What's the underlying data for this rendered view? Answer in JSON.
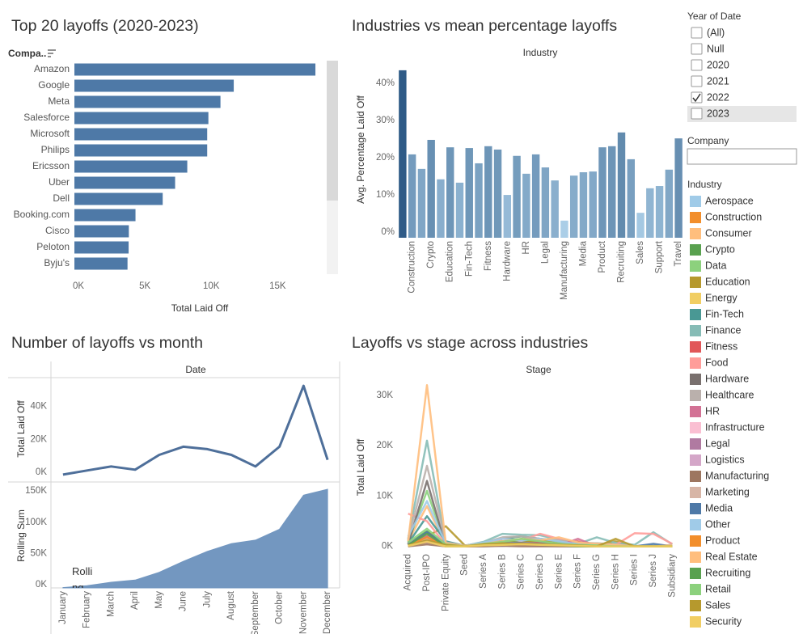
{
  "chart_data": [
    {
      "type": "bar",
      "orientation": "horizontal",
      "title": "Top 20 layoffs (2020-2023)",
      "y_label": "Compa..",
      "x_label": "Total Laid Off",
      "categories": [
        "Amazon",
        "Google",
        "Meta",
        "Salesforce",
        "Microsoft",
        "Philips",
        "Ericsson",
        "Uber",
        "Dell",
        "Booking.com",
        "Cisco",
        "Peloton",
        "Byju's"
      ],
      "values": [
        18150,
        12000,
        11000,
        10090,
        10000,
        10000,
        8500,
        7585,
        6650,
        4601,
        4100,
        4084,
        4000
      ],
      "color": "#4e79a7",
      "xlim": [
        0,
        19000
      ],
      "xticks": [
        {
          "value": 0,
          "label": "0K"
        },
        {
          "value": 5000,
          "label": "5K"
        },
        {
          "value": 10000,
          "label": "10K"
        },
        {
          "value": 15000,
          "label": "15K"
        }
      ],
      "grid": false
    },
    {
      "type": "bar",
      "title": "Industries vs mean percentage layoffs",
      "header": "Industry",
      "y_label": "Avg. Percentage Laid Off",
      "categories": [
        null,
        "Construction",
        null,
        "Crypto",
        null,
        "Education",
        null,
        "Fin-Tech",
        null,
        "Fitness",
        null,
        "Hardware",
        null,
        "HR",
        null,
        "Legal",
        null,
        "Manufacturing",
        null,
        "Media",
        null,
        "Product",
        null,
        "Recruiting",
        null,
        "Sales",
        null,
        "Support",
        null,
        "Travel"
      ],
      "values": [
        45,
        22.4,
        18.5,
        26.3,
        15.7,
        24.3,
        14.8,
        24.1,
        20,
        24.6,
        23.7,
        11.5,
        22,
        17.2,
        22.4,
        18.9,
        15.4,
        4.6,
        16.7,
        17.6,
        17.8,
        24.3,
        24.6,
        28.3,
        21.1,
        6.7,
        13.3,
        13.9,
        18.3,
        26.7
      ],
      "color_range": [
        "#b9dbf2",
        "#2a5783"
      ],
      "ylim": [
        0,
        46.5
      ],
      "yticks": [
        {
          "value": 0,
          "label": "0%"
        },
        {
          "value": 10,
          "label": "10%"
        },
        {
          "value": 20,
          "label": "20%"
        },
        {
          "value": 30,
          "label": "30%"
        },
        {
          "value": 40,
          "label": "40%"
        }
      ],
      "grid": false
    },
    {
      "type": "line",
      "title": "Number of layoffs vs month",
      "header": "Date",
      "annotation": "Rolling",
      "categories": [
        "January",
        "February",
        "March",
        "April",
        "May",
        "June",
        "July",
        "August",
        "September",
        "October",
        "November",
        "December"
      ],
      "series": [
        {
          "name": "Total Laid Off",
          "color": "#4e6f9a",
          "area": false,
          "values": [
            500,
            3000,
            5500,
            3500,
            12500,
            17500,
            16000,
            12500,
            5500,
            17500,
            54500,
            9500
          ],
          "ylim": [
            -1500,
            58000
          ],
          "yticks": [
            {
              "value": 0,
              "label": "0K"
            },
            {
              "value": 20000,
              "label": "20K"
            },
            {
              "value": 40000,
              "label": "40K"
            }
          ]
        },
        {
          "name": "Rolling Sum",
          "color": "#7397c0",
          "area": true,
          "values": [
            500,
            3500,
            9000,
            12500,
            25000,
            42500,
            58500,
            71000,
            76500,
            94000,
            148500,
            158000
          ],
          "ylim": [
            0,
            167000
          ],
          "yticks": [
            {
              "value": 0,
              "label": "0K"
            },
            {
              "value": 50000,
              "label": "50K"
            },
            {
              "value": 100000,
              "label": "100K"
            },
            {
              "value": 150000,
              "label": "150K"
            }
          ]
        }
      ]
    },
    {
      "type": "multiline",
      "title": "Layoffs vs stage across industries",
      "header": "Stage",
      "y_label": "Total Laid Off",
      "legend_title": "Industry",
      "categories": [
        "Acquired",
        "Post-IPO",
        "Private Equity",
        "Seed",
        "Series A",
        "Series B",
        "Series C",
        "Series D",
        "Series E",
        "Series F",
        "Series G",
        "Series H",
        "Series I",
        "Series J",
        "Subsidiary"
      ],
      "ylim": [
        -700,
        33500
      ],
      "yticks": [
        {
          "value": 0,
          "label": "0K"
        },
        {
          "value": 10000,
          "label": "10K"
        },
        {
          "value": 20000,
          "label": "20K"
        },
        {
          "value": 30000,
          "label": "30K"
        }
      ],
      "series": [
        {
          "name": "Aerospace",
          "color": "#a0cbe8",
          "values": [
            200,
            1200,
            0,
            0,
            0,
            100,
            300,
            200,
            0,
            0,
            0,
            0,
            0,
            0,
            0
          ]
        },
        {
          "name": "Construction",
          "color": "#f28e2b",
          "values": [
            100,
            1500,
            0,
            0,
            200,
            300,
            500,
            400,
            300,
            100,
            0,
            0,
            0,
            0,
            0
          ]
        },
        {
          "name": "Consumer",
          "color": "#ffbe7d",
          "values": [
            1000,
            8000,
            300,
            0,
            300,
            800,
            1500,
            1000,
            1200,
            400,
            300,
            200,
            0,
            0,
            100
          ]
        },
        {
          "name": "Crypto",
          "color": "#59a14f",
          "values": [
            500,
            3000,
            300,
            100,
            800,
            1000,
            1200,
            700,
            500,
            200,
            300,
            200,
            0,
            0,
            0
          ]
        },
        {
          "name": "Data",
          "color": "#8cd17d",
          "values": [
            800,
            11000,
            200,
            0,
            600,
            1500,
            2000,
            1000,
            800,
            500,
            600,
            400,
            0,
            0,
            0
          ]
        },
        {
          "name": "Education",
          "color": "#b6992d",
          "values": [
            300,
            2000,
            4000,
            200,
            500,
            900,
            700,
            1200,
            500,
            300,
            200,
            1000,
            0,
            0,
            0
          ]
        },
        {
          "name": "Energy",
          "color": "#f1ce63",
          "values": [
            0,
            900,
            0,
            0,
            100,
            200,
            300,
            200,
            100,
            0,
            0,
            0,
            0,
            0,
            0
          ]
        },
        {
          "name": "Fin-Tech",
          "color": "#499894",
          "values": [
            600,
            6000,
            1000,
            100,
            800,
            1500,
            2000,
            1500,
            1000,
            600,
            500,
            300,
            0,
            100,
            0
          ]
        },
        {
          "name": "Finance",
          "color": "#86bcb6",
          "values": [
            1500,
            21000,
            500,
            100,
            900,
            2500,
            2300,
            2200,
            1300,
            500,
            1800,
            700,
            300,
            2800,
            400
          ]
        },
        {
          "name": "Fitness",
          "color": "#e15759",
          "values": [
            300,
            2500,
            0,
            0,
            200,
            400,
            600,
            700,
            300,
            1000,
            0,
            0,
            0,
            0,
            0
          ]
        },
        {
          "name": "Food",
          "color": "#ff9d9a",
          "values": [
            6500,
            5000,
            300,
            0,
            400,
            1500,
            1200,
            2500,
            1500,
            800,
            500,
            300,
            2600,
            2500,
            500
          ]
        },
        {
          "name": "Hardware",
          "color": "#79706e",
          "values": [
            400,
            13000,
            0,
            0,
            100,
            200,
            400,
            300,
            200,
            0,
            0,
            0,
            0,
            0,
            0
          ]
        },
        {
          "name": "Healthcare",
          "color": "#bab0ac",
          "values": [
            1200,
            16000,
            800,
            100,
            700,
            1800,
            2000,
            1500,
            1200,
            800,
            600,
            400,
            0,
            0,
            300
          ]
        },
        {
          "name": "HR",
          "color": "#d37295",
          "values": [
            200,
            2000,
            0,
            0,
            300,
            500,
            400,
            300,
            200,
            1500,
            0,
            0,
            0,
            0,
            0
          ]
        },
        {
          "name": "Infrastructure",
          "color": "#fabfd2",
          "values": [
            0,
            1000,
            0,
            0,
            100,
            200,
            500,
            300,
            0,
            0,
            0,
            0,
            0,
            0,
            0
          ]
        },
        {
          "name": "Legal",
          "color": "#b07aa1",
          "values": [
            100,
            800,
            0,
            0,
            100,
            200,
            300,
            200,
            100,
            0,
            0,
            0,
            0,
            0,
            0
          ]
        },
        {
          "name": "Logistics",
          "color": "#d4a6c8",
          "values": [
            500,
            2500,
            300,
            0,
            300,
            600,
            800,
            500,
            400,
            200,
            0,
            0,
            0,
            0,
            0
          ]
        },
        {
          "name": "Manufacturing",
          "color": "#9d7660",
          "values": [
            0,
            400,
            0,
            0,
            0,
            100,
            0,
            0,
            0,
            0,
            0,
            0,
            0,
            0,
            0
          ]
        },
        {
          "name": "Marketing",
          "color": "#d7b5a6",
          "values": [
            300,
            1500,
            100,
            0,
            300,
            500,
            600,
            400,
            300,
            100,
            0,
            0,
            0,
            0,
            0
          ]
        },
        {
          "name": "Media",
          "color": "#4e79a7",
          "values": [
            300,
            2800,
            200,
            0,
            300,
            600,
            700,
            500,
            300,
            200,
            100,
            0,
            0,
            500,
            0
          ]
        },
        {
          "name": "Other",
          "color": "#a0cbe8",
          "values": [
            2000,
            9000,
            500,
            100,
            800,
            1500,
            1200,
            1500,
            1000,
            400,
            300,
            200,
            0,
            0,
            0
          ]
        },
        {
          "name": "Product",
          "color": "#f28e2b",
          "values": [
            200,
            1800,
            0,
            0,
            200,
            300,
            600,
            400,
            200,
            100,
            0,
            0,
            0,
            0,
            0
          ]
        },
        {
          "name": "Real Estate",
          "color": "#ffbe7d",
          "values": [
            1000,
            32000,
            600,
            100,
            500,
            1000,
            1500,
            1200,
            1800,
            800,
            500,
            300,
            0,
            0,
            200
          ]
        },
        {
          "name": "Recruiting",
          "color": "#59a14f",
          "values": [
            300,
            2500,
            0,
            0,
            300,
            400,
            500,
            300,
            200,
            0,
            0,
            0,
            0,
            0,
            0
          ]
        },
        {
          "name": "Retail",
          "color": "#8cd17d",
          "values": [
            800,
            3500,
            400,
            0,
            500,
            900,
            1500,
            1000,
            500,
            300,
            200,
            0,
            0,
            0,
            0
          ]
        },
        {
          "name": "Sales",
          "color": "#b6992d",
          "values": [
            200,
            1200,
            300,
            0,
            400,
            600,
            500,
            400,
            300,
            200,
            0,
            1500,
            0,
            0,
            0
          ]
        },
        {
          "name": "Security",
          "color": "#f1ce63",
          "values": [
            100,
            900,
            0,
            0,
            200,
            300,
            400,
            300,
            200,
            100,
            0,
            0,
            0,
            0,
            0
          ]
        }
      ]
    }
  ],
  "filters": {
    "year": {
      "title": "Year of Date",
      "options": [
        {
          "label": "(All)",
          "checked": false,
          "highlighted": false
        },
        {
          "label": "Null",
          "checked": false,
          "highlighted": false
        },
        {
          "label": "2020",
          "checked": false,
          "highlighted": false
        },
        {
          "label": "2021",
          "checked": false,
          "highlighted": false
        },
        {
          "label": "2022",
          "checked": true,
          "highlighted": false
        },
        {
          "label": "2023",
          "checked": false,
          "highlighted": true
        }
      ]
    },
    "company": {
      "title": "Company"
    }
  }
}
